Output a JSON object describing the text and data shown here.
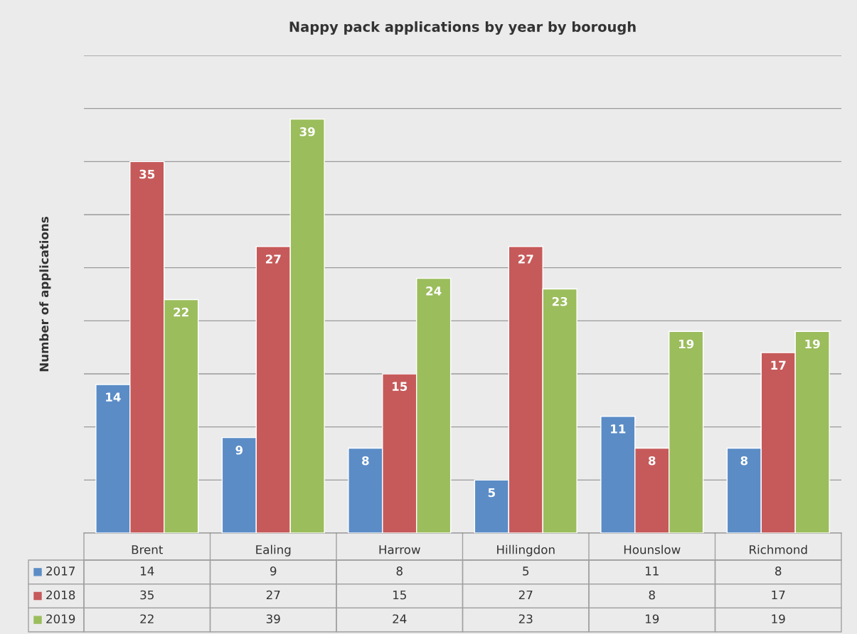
{
  "chart_data": [
    {
      "type": "bar",
      "title": "Nappy pack applications by year by borough",
      "ylabel": "Number of applications",
      "categories": [
        "Brent",
        "Ealing",
        "Harrow",
        "Hillingdon",
        "Hounslow",
        "Richmond"
      ],
      "series": [
        {
          "name": "2017",
          "color": "#5b8cc6",
          "values": [
            14,
            9,
            8,
            5,
            11,
            8
          ],
          "value_labels": [
            "14",
            "9",
            "8",
            "5",
            "11",
            "8"
          ]
        },
        {
          "name": "2018",
          "color": "#c65a5a",
          "values": [
            35,
            27,
            15,
            27,
            8,
            17
          ],
          "value_labels": [
            "35",
            "27",
            "15",
            "27",
            "8",
            "17"
          ]
        },
        {
          "name": "2019",
          "color": "#9bbd5c",
          "values": [
            22,
            39,
            24,
            23,
            19,
            19
          ],
          "value_labels": [
            "22",
            "39",
            "24",
            "23",
            "19",
            "19"
          ]
        }
      ],
      "ylim": [
        0,
        45
      ],
      "yticks": [
        {
          "value": 0,
          "label": null
        },
        {
          "value": 5,
          "label": null
        },
        {
          "value": 10,
          "label": null
        },
        {
          "value": 15,
          "label": null
        },
        {
          "value": 20,
          "label": null
        },
        {
          "value": 25,
          "label": null
        },
        {
          "value": 30,
          "label": null
        },
        {
          "value": 35,
          "label": null
        },
        {
          "value": 40,
          "label": null
        },
        {
          "value": 45,
          "label": null
        }
      ],
      "grid": "y",
      "tick_labels": "x",
      "legend": "bottom"
    },
    {
      "type": "other",
      "annotations": [
        "14",
        "9",
        "8",
        "5",
        "11",
        "8",
        "35",
        "27",
        "15",
        "27",
        "8",
        "17",
        "22",
        "39",
        "24",
        "23",
        "19",
        "19"
      ]
    }
  ]
}
